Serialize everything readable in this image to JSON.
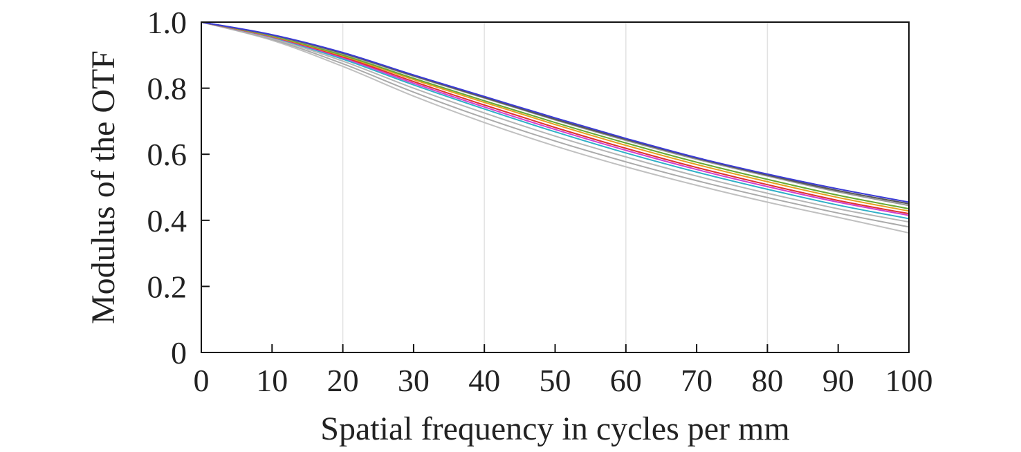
{
  "chart_data": {
    "type": "line",
    "title": "",
    "xlabel": "Spatial frequency in cycles per mm",
    "ylabel": "Modulus of the OTF",
    "xlim": [
      0,
      100
    ],
    "ylim": [
      0,
      1.0
    ],
    "x_ticks": [
      "0",
      "10",
      "20",
      "30",
      "40",
      "50",
      "60",
      "70",
      "80",
      "90",
      "100"
    ],
    "y_ticks": [
      "0",
      "0.2",
      "0.4",
      "0.6",
      "0.8",
      "1.0"
    ],
    "grid": "vertical",
    "legend": "none",
    "x": [
      0,
      10,
      20,
      30,
      40,
      50,
      60,
      70,
      80,
      90,
      100
    ],
    "series": [
      {
        "color": "#3b3bd6",
        "values": [
          1.0,
          0.962,
          0.908,
          0.84,
          0.775,
          0.71,
          0.648,
          0.59,
          0.54,
          0.495,
          0.455
        ]
      },
      {
        "color": "#555555",
        "values": [
          1.0,
          0.961,
          0.906,
          0.838,
          0.772,
          0.706,
          0.645,
          0.588,
          0.537,
          0.49,
          0.45
        ]
      },
      {
        "color": "#999999",
        "values": [
          1.0,
          0.96,
          0.904,
          0.836,
          0.77,
          0.704,
          0.642,
          0.585,
          0.534,
          0.486,
          0.445
        ]
      },
      {
        "color": "#66aa33",
        "values": [
          1.0,
          0.958,
          0.9,
          0.83,
          0.762,
          0.696,
          0.634,
          0.576,
          0.524,
          0.476,
          0.435
        ]
      },
      {
        "color": "#e6a020",
        "values": [
          1.0,
          0.957,
          0.898,
          0.826,
          0.757,
          0.69,
          0.627,
          0.569,
          0.517,
          0.469,
          0.428
        ]
      },
      {
        "color": "#e03030",
        "values": [
          1.0,
          0.956,
          0.895,
          0.82,
          0.749,
          0.681,
          0.618,
          0.56,
          0.508,
          0.46,
          0.42
        ]
      },
      {
        "color": "#d040d0",
        "values": [
          1.0,
          0.955,
          0.892,
          0.815,
          0.743,
          0.675,
          0.612,
          0.554,
          0.502,
          0.455,
          0.415
        ]
      },
      {
        "color": "#30b0c8",
        "values": [
          1.0,
          0.954,
          0.888,
          0.81,
          0.737,
          0.668,
          0.604,
          0.546,
          0.494,
          0.446,
          0.405
        ]
      },
      {
        "color": "#b5b5b5",
        "values": [
          1.0,
          0.951,
          0.882,
          0.8,
          0.725,
          0.655,
          0.592,
          0.534,
          0.482,
          0.435,
          0.395
        ]
      },
      {
        "color": "#aaaaaa",
        "values": [
          1.0,
          0.948,
          0.874,
          0.788,
          0.71,
          0.64,
          0.577,
          0.52,
          0.469,
          0.422,
          0.38
        ]
      },
      {
        "color": "#c0c0c0",
        "values": [
          1.0,
          0.945,
          0.866,
          0.776,
          0.696,
          0.625,
          0.562,
          0.506,
          0.455,
          0.409,
          0.362
        ]
      }
    ]
  }
}
